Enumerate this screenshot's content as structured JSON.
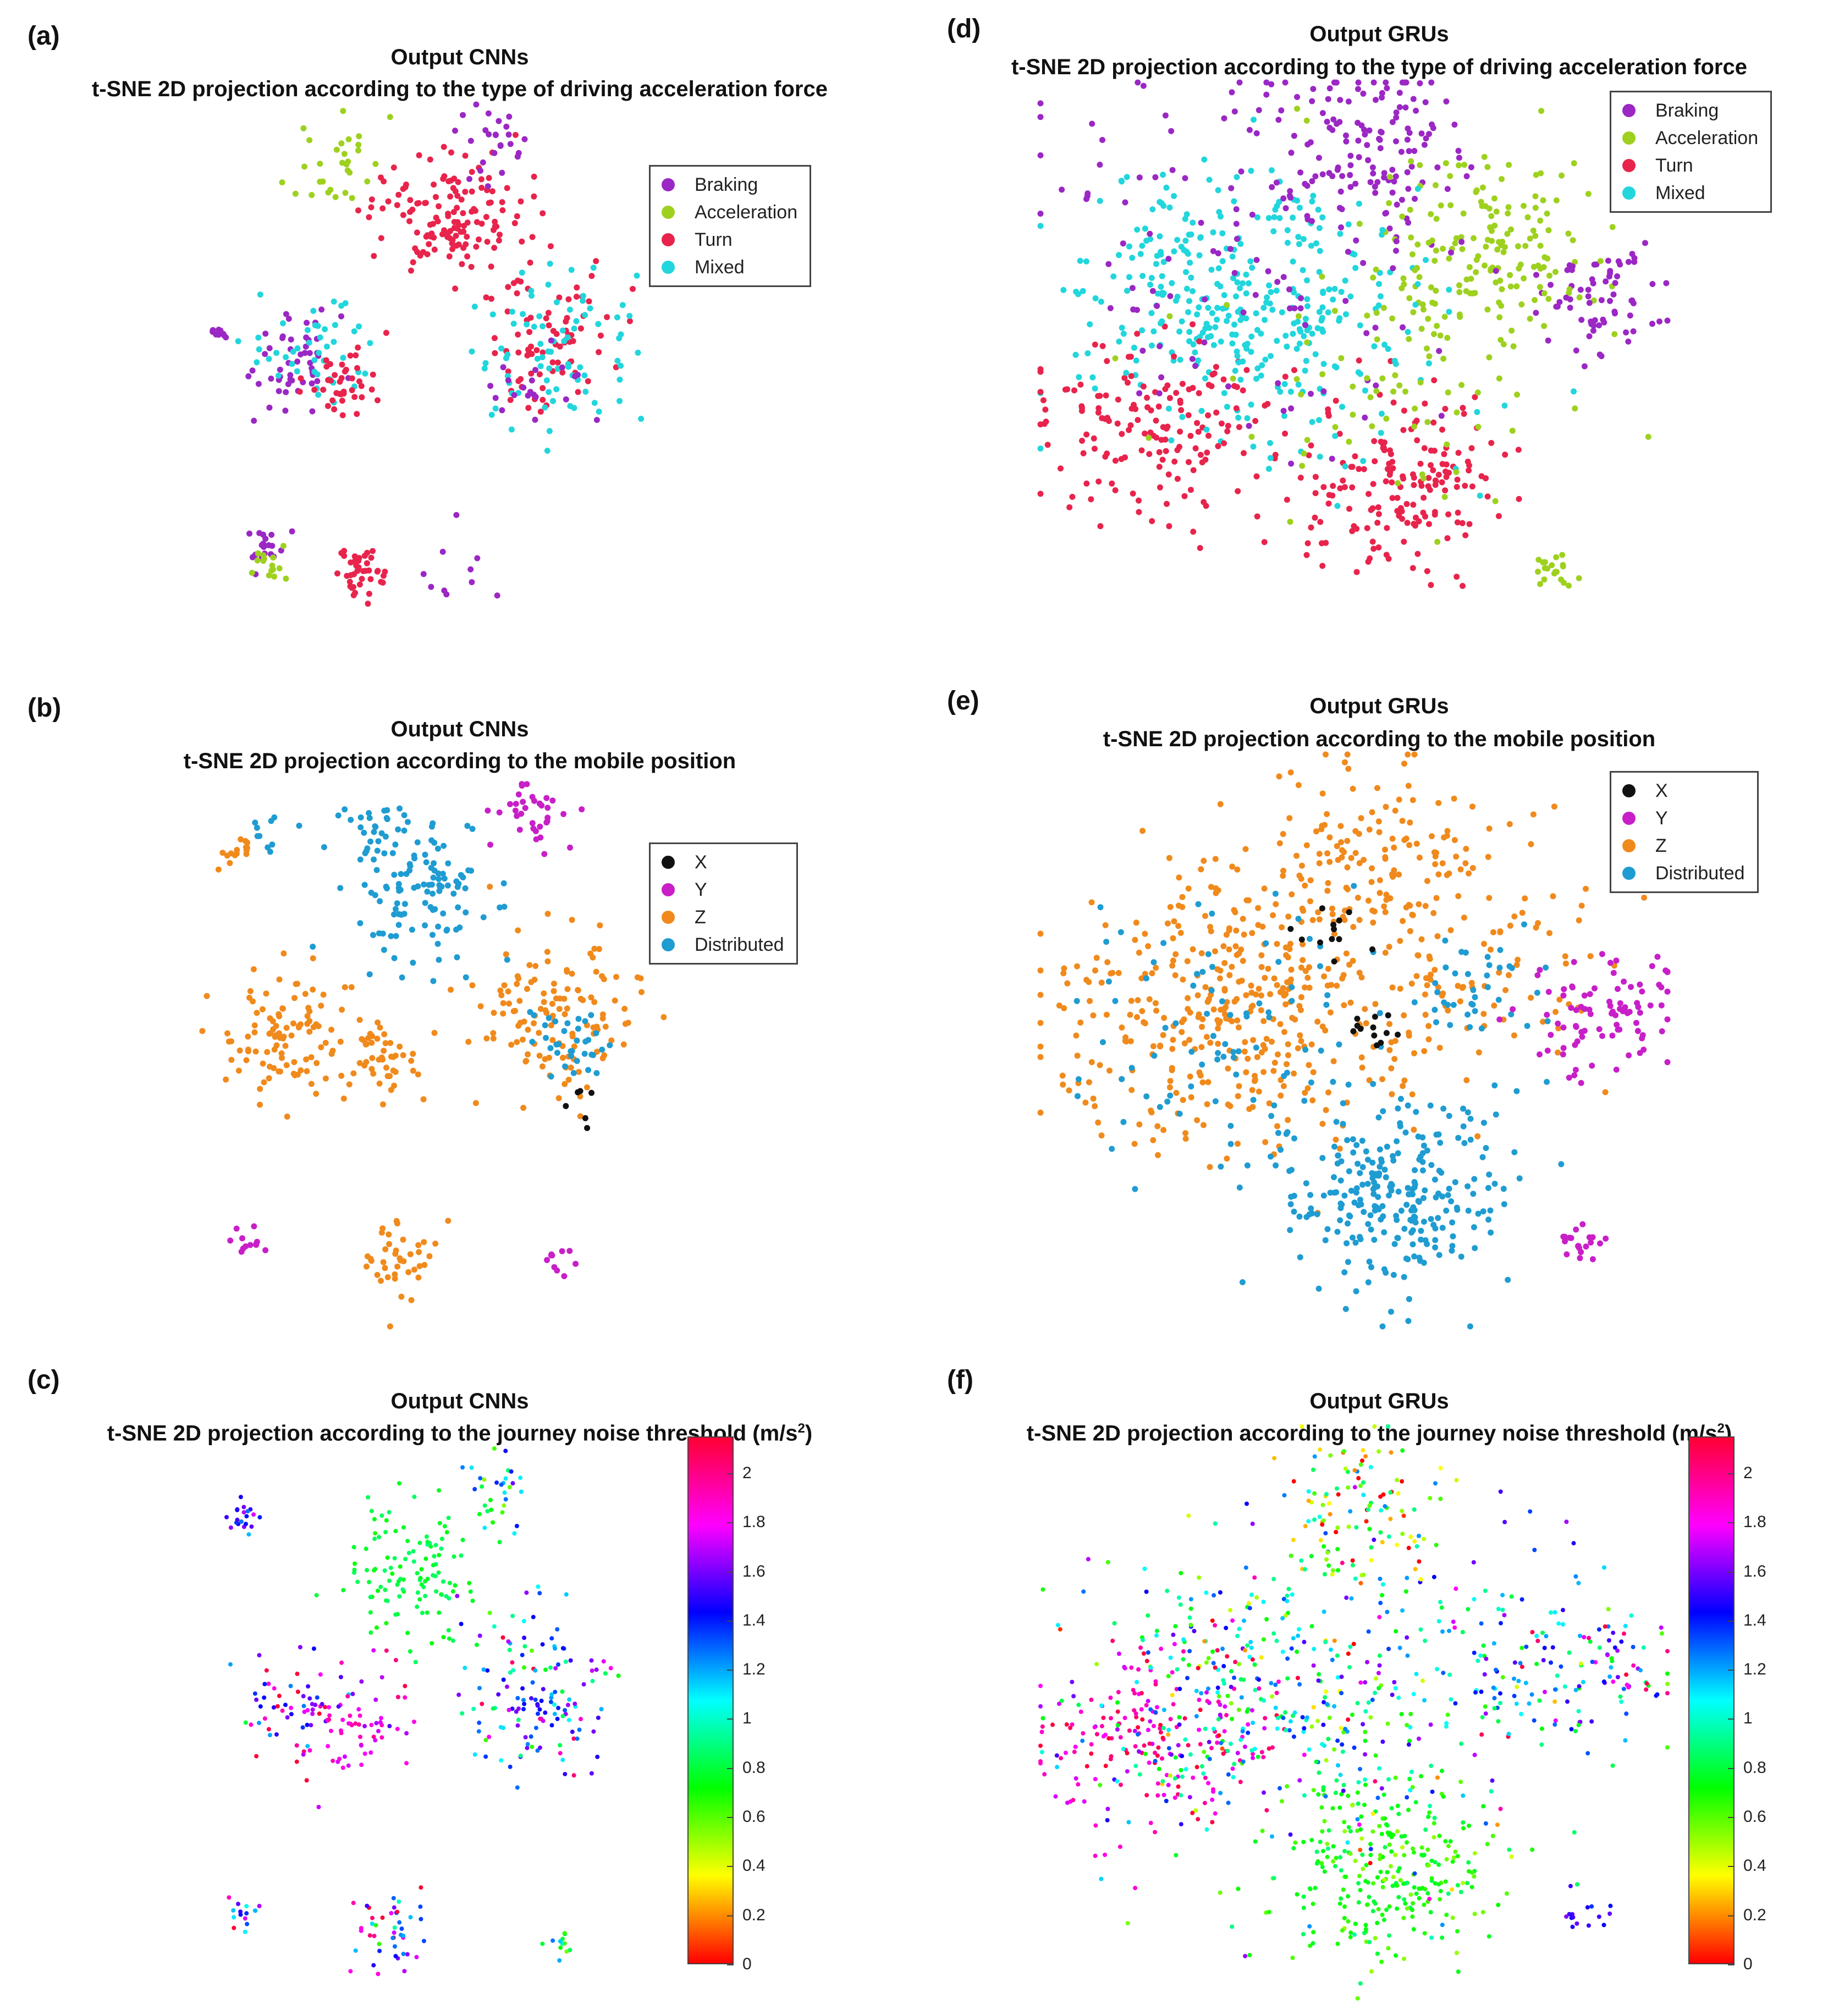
{
  "chart_data": [
    {
      "id": "a",
      "label": "(a)",
      "type": "scatter",
      "title": "Output CNNs",
      "subtitle": "t-SNE 2D projection according to the type of driving acceleration force",
      "coloring": "categorical",
      "legend_position": "top-right",
      "legend": [
        "Braking",
        "Acceleration",
        "Turn",
        "Mixed"
      ],
      "colors": [
        "#9b27c4",
        "#9ed11f",
        "#e8244c",
        "#21d6dc"
      ],
      "clusters": [
        {
          "x": 0.46,
          "y": 0.8,
          "n": 70,
          "c": 2,
          "s": 0.06
        },
        {
          "x": 0.54,
          "y": 0.8,
          "n": 70,
          "c": 2,
          "s": 0.06
        },
        {
          "x": 0.28,
          "y": 0.89,
          "n": 30,
          "c": 1,
          "s": 0.04
        },
        {
          "x": 0.6,
          "y": 0.93,
          "n": 25,
          "c": 0,
          "s": 0.05
        },
        {
          "x": 0.2,
          "y": 0.53,
          "n": 50,
          "c": 0,
          "s": 0.05
        },
        {
          "x": 0.24,
          "y": 0.55,
          "n": 45,
          "c": 3,
          "s": 0.06
        },
        {
          "x": 0.3,
          "y": 0.5,
          "n": 40,
          "c": 2,
          "s": 0.04
        },
        {
          "x": 0.7,
          "y": 0.58,
          "n": 80,
          "c": 2,
          "s": 0.07
        },
        {
          "x": 0.72,
          "y": 0.56,
          "n": 80,
          "c": 3,
          "s": 0.08
        },
        {
          "x": 0.68,
          "y": 0.5,
          "n": 20,
          "c": 0,
          "s": 0.05
        },
        {
          "x": 0.14,
          "y": 0.2,
          "n": 20,
          "c": 0,
          "s": 0.02
        },
        {
          "x": 0.14,
          "y": 0.16,
          "n": 15,
          "c": 1,
          "s": 0.02
        },
        {
          "x": 0.33,
          "y": 0.15,
          "n": 40,
          "c": 2,
          "s": 0.03
        },
        {
          "x": 0.5,
          "y": 0.13,
          "n": 10,
          "c": 0,
          "s": 0.05
        },
        {
          "x": 0.04,
          "y": 0.58,
          "n": 10,
          "c": 0,
          "s": 0.01
        }
      ]
    },
    {
      "id": "b",
      "label": "(b)",
      "type": "scatter",
      "title": "Output CNNs",
      "subtitle": "t-SNE 2D projection according to the mobile position",
      "coloring": "categorical",
      "legend_position": "top-right",
      "legend": [
        "X",
        "Y",
        "Z",
        "Distributed"
      ],
      "colors": [
        "#111111",
        "#c81fc8",
        "#f08a1c",
        "#1f9cd1"
      ],
      "clusters": [
        {
          "x": 0.45,
          "y": 0.78,
          "n": 110,
          "c": 3,
          "s": 0.07
        },
        {
          "x": 0.36,
          "y": 0.9,
          "n": 30,
          "c": 3,
          "s": 0.04
        },
        {
          "x": 0.08,
          "y": 0.87,
          "n": 15,
          "c": 2,
          "s": 0.02
        },
        {
          "x": 0.14,
          "y": 0.9,
          "n": 10,
          "c": 3,
          "s": 0.02
        },
        {
          "x": 0.66,
          "y": 0.93,
          "n": 35,
          "c": 1,
          "s": 0.04
        },
        {
          "x": 0.2,
          "y": 0.53,
          "n": 110,
          "c": 2,
          "s": 0.07
        },
        {
          "x": 0.38,
          "y": 0.49,
          "n": 40,
          "c": 2,
          "s": 0.04
        },
        {
          "x": 0.72,
          "y": 0.56,
          "n": 130,
          "c": 2,
          "s": 0.08
        },
        {
          "x": 0.76,
          "y": 0.52,
          "n": 35,
          "c": 3,
          "s": 0.04
        },
        {
          "x": 0.4,
          "y": 0.13,
          "n": 40,
          "c": 2,
          "s": 0.04
        },
        {
          "x": 0.1,
          "y": 0.15,
          "n": 12,
          "c": 1,
          "s": 0.02
        },
        {
          "x": 0.78,
          "y": 0.4,
          "n": 6,
          "c": 0,
          "s": 0.02
        },
        {
          "x": 0.74,
          "y": 0.12,
          "n": 10,
          "c": 1,
          "s": 0.02
        }
      ]
    },
    {
      "id": "c",
      "label": "(c)",
      "type": "scatter",
      "title": "Output CNNs",
      "subtitle": "t-SNE 2D projection according to the journey noise threshold (m/s",
      "subtitle_superscript": "2",
      "subtitle_end": ")",
      "coloring": "continuous",
      "colorbar": {
        "min": 0,
        "max": 2.15,
        "ticks": [
          "0",
          "0.2",
          "0.4",
          "0.6",
          "0.8",
          "1",
          "1.2",
          "1.4",
          "1.6",
          "1.8",
          "2"
        ],
        "tick_values": [
          0,
          0.2,
          0.4,
          0.6,
          0.8,
          1.0,
          1.2,
          1.4,
          1.6,
          1.8,
          2.0
        ]
      },
      "clusters": [
        {
          "x": 0.45,
          "y": 0.78,
          "n": 120,
          "v": 0.8,
          "vs": 0.05,
          "s": 0.07
        },
        {
          "x": 0.2,
          "y": 0.53,
          "n": 60,
          "v": 1.7,
          "vs": 0.4,
          "s": 0.06
        },
        {
          "x": 0.34,
          "y": 0.5,
          "n": 60,
          "v": 1.8,
          "vs": 0.15,
          "s": 0.05
        },
        {
          "x": 0.72,
          "y": 0.56,
          "n": 140,
          "v": 1.3,
          "vs": 0.35,
          "s": 0.08
        },
        {
          "x": 0.1,
          "y": 0.88,
          "n": 20,
          "v": 1.45,
          "vs": 0.15,
          "s": 0.02
        },
        {
          "x": 0.64,
          "y": 0.92,
          "n": 30,
          "v": 1.05,
          "vs": 0.35,
          "s": 0.04
        },
        {
          "x": 0.4,
          "y": 0.13,
          "n": 45,
          "v": 1.6,
          "vs": 0.4,
          "s": 0.04
        },
        {
          "x": 0.1,
          "y": 0.15,
          "n": 15,
          "v": 1.5,
          "vs": 0.3,
          "s": 0.02
        },
        {
          "x": 0.76,
          "y": 0.1,
          "n": 12,
          "v": 0.8,
          "vs": 0.2,
          "s": 0.02
        }
      ]
    },
    {
      "id": "d",
      "label": "(d)",
      "type": "scatter",
      "title": "Output GRUs",
      "subtitle": "t-SNE 2D projection according to the type of driving acceleration force",
      "coloring": "categorical",
      "legend_position": "top-right",
      "legend": [
        "Braking",
        "Acceleration",
        "Turn",
        "Mixed"
      ],
      "colors": [
        "#9b27c4",
        "#9ed11f",
        "#e8244c",
        "#21d6dc"
      ],
      "clusters": [
        {
          "x": 0.3,
          "y": 0.66,
          "n": 220,
          "c": 3,
          "s": 0.12
        },
        {
          "x": 0.18,
          "y": 0.4,
          "n": 160,
          "c": 2,
          "s": 0.09
        },
        {
          "x": 0.58,
          "y": 0.3,
          "n": 180,
          "c": 2,
          "s": 0.09
        },
        {
          "x": 0.52,
          "y": 0.88,
          "n": 120,
          "c": 0,
          "s": 0.08
        },
        {
          "x": 0.72,
          "y": 0.7,
          "n": 150,
          "c": 1,
          "s": 0.1
        },
        {
          "x": 0.88,
          "y": 0.62,
          "n": 70,
          "c": 0,
          "s": 0.06
        },
        {
          "x": 0.4,
          "y": 0.55,
          "n": 140,
          "c": 3,
          "s": 0.14
        },
        {
          "x": 0.35,
          "y": 0.72,
          "n": 120,
          "c": 0,
          "s": 0.18
        },
        {
          "x": 0.6,
          "y": 0.5,
          "n": 90,
          "c": 1,
          "s": 0.16
        },
        {
          "x": 0.82,
          "y": 0.15,
          "n": 20,
          "c": 1,
          "s": 0.02
        }
      ]
    },
    {
      "id": "e",
      "label": "(e)",
      "type": "scatter",
      "title": "Output GRUs",
      "subtitle": "t-SNE 2D projection according to the mobile position",
      "coloring": "categorical",
      "legend_position": "top-right",
      "legend": [
        "X",
        "Y",
        "Z",
        "Distributed"
      ],
      "colors": [
        "#111111",
        "#c81fc8",
        "#f08a1c",
        "#1f9cd1"
      ],
      "clusters": [
        {
          "x": 0.3,
          "y": 0.55,
          "n": 380,
          "c": 2,
          "s": 0.14
        },
        {
          "x": 0.55,
          "y": 0.82,
          "n": 150,
          "c": 2,
          "s": 0.1
        },
        {
          "x": 0.7,
          "y": 0.6,
          "n": 90,
          "c": 2,
          "s": 0.1
        },
        {
          "x": 0.56,
          "y": 0.23,
          "n": 260,
          "c": 3,
          "s": 0.09
        },
        {
          "x": 0.3,
          "y": 0.5,
          "n": 90,
          "c": 3,
          "s": 0.14
        },
        {
          "x": 0.7,
          "y": 0.58,
          "n": 40,
          "c": 3,
          "s": 0.06
        },
        {
          "x": 0.9,
          "y": 0.55,
          "n": 90,
          "c": 1,
          "s": 0.06
        },
        {
          "x": 0.86,
          "y": 0.15,
          "n": 20,
          "c": 1,
          "s": 0.02
        },
        {
          "x": 0.54,
          "y": 0.52,
          "n": 12,
          "c": 0,
          "s": 0.02
        },
        {
          "x": 0.45,
          "y": 0.7,
          "n": 12,
          "c": 0,
          "s": 0.04
        }
      ]
    },
    {
      "id": "f",
      "label": "(f)",
      "type": "scatter",
      "title": "Output GRUs",
      "subtitle": "t-SNE 2D projection according to the journey noise threshold (m/s",
      "subtitle_superscript": "2",
      "subtitle_end": ")",
      "coloring": "continuous",
      "colorbar": {
        "min": 0,
        "max": 2.15,
        "ticks": [
          "0",
          "0.2",
          "0.4",
          "0.6",
          "0.8",
          "1",
          "1.2",
          "1.4",
          "1.6",
          "1.8",
          "2"
        ],
        "tick_values": [
          0,
          0.2,
          0.4,
          0.6,
          0.8,
          1.0,
          1.2,
          1.4,
          1.6,
          1.8,
          2.0
        ]
      },
      "clusters": [
        {
          "x": 0.55,
          "y": 0.22,
          "n": 280,
          "v": 0.7,
          "vs": 0.1,
          "s": 0.09
        },
        {
          "x": 0.18,
          "y": 0.45,
          "n": 200,
          "v": 1.9,
          "vs": 0.15,
          "s": 0.1
        },
        {
          "x": 0.32,
          "y": 0.55,
          "n": 250,
          "v": 1.0,
          "vs": 0.35,
          "s": 0.13
        },
        {
          "x": 0.52,
          "y": 0.85,
          "n": 120,
          "v": 0.6,
          "vs": 0.5,
          "s": 0.08
        },
        {
          "x": 0.72,
          "y": 0.6,
          "n": 120,
          "v": 1.2,
          "vs": 0.35,
          "s": 0.1
        },
        {
          "x": 0.9,
          "y": 0.58,
          "n": 70,
          "v": 1.3,
          "vs": 0.5,
          "s": 0.06
        },
        {
          "x": 0.45,
          "y": 0.45,
          "n": 150,
          "v": 1.1,
          "vs": 0.5,
          "s": 0.16
        },
        {
          "x": 0.86,
          "y": 0.14,
          "n": 15,
          "v": 1.5,
          "vs": 0.1,
          "s": 0.02
        }
      ]
    }
  ]
}
